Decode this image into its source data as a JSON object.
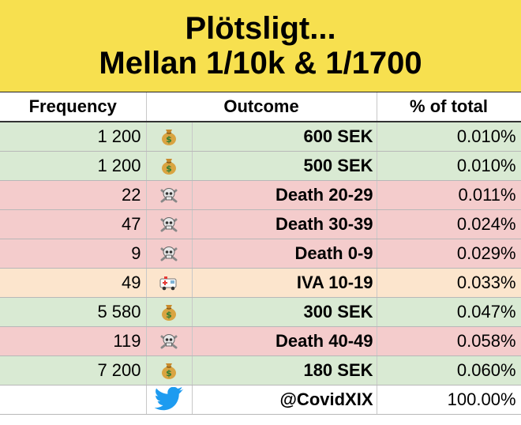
{
  "banner": {
    "line1": "Plötsligt...",
    "line2": "Mellan 1/10k & 1/1700"
  },
  "headers": {
    "frequency": "Frequency",
    "outcome": "Outcome",
    "percent": "% of total"
  },
  "colors": {
    "banner": "#f7e04f",
    "green": "#d9ead3",
    "red": "#f4cccc",
    "orange": "#fce5cd"
  },
  "rows": [
    {
      "frequency": "1 200",
      "icon": "money-bag-icon",
      "outcome": "600 SEK",
      "percent": "0.010%",
      "status": "green"
    },
    {
      "frequency": "1 200",
      "icon": "money-bag-icon",
      "outcome": "500 SEK",
      "percent": "0.010%",
      "status": "green"
    },
    {
      "frequency": "22",
      "icon": "skull-crossbones-icon",
      "outcome": "Death 20-29",
      "percent": "0.011%",
      "status": "red"
    },
    {
      "frequency": "47",
      "icon": "skull-crossbones-icon",
      "outcome": "Death 30-39",
      "percent": "0.024%",
      "status": "red"
    },
    {
      "frequency": "9",
      "icon": "skull-crossbones-icon",
      "outcome": "Death 0-9",
      "percent": "0.029%",
      "status": "red"
    },
    {
      "frequency": "49",
      "icon": "ambulance-icon",
      "outcome": "IVA 10-19",
      "percent": "0.033%",
      "status": "orange"
    },
    {
      "frequency": "5 580",
      "icon": "money-bag-icon",
      "outcome": "300 SEK",
      "percent": "0.047%",
      "status": "green"
    },
    {
      "frequency": "119",
      "icon": "skull-crossbones-icon",
      "outcome": "Death 40-49",
      "percent": "0.058%",
      "status": "red"
    },
    {
      "frequency": "7 200",
      "icon": "money-bag-icon",
      "outcome": "180 SEK",
      "percent": "0.060%",
      "status": "green"
    }
  ],
  "footer": {
    "frequency": "",
    "icon": "twitter-bird-icon",
    "handle": "@CovidXIX",
    "percent": "100.00%"
  }
}
